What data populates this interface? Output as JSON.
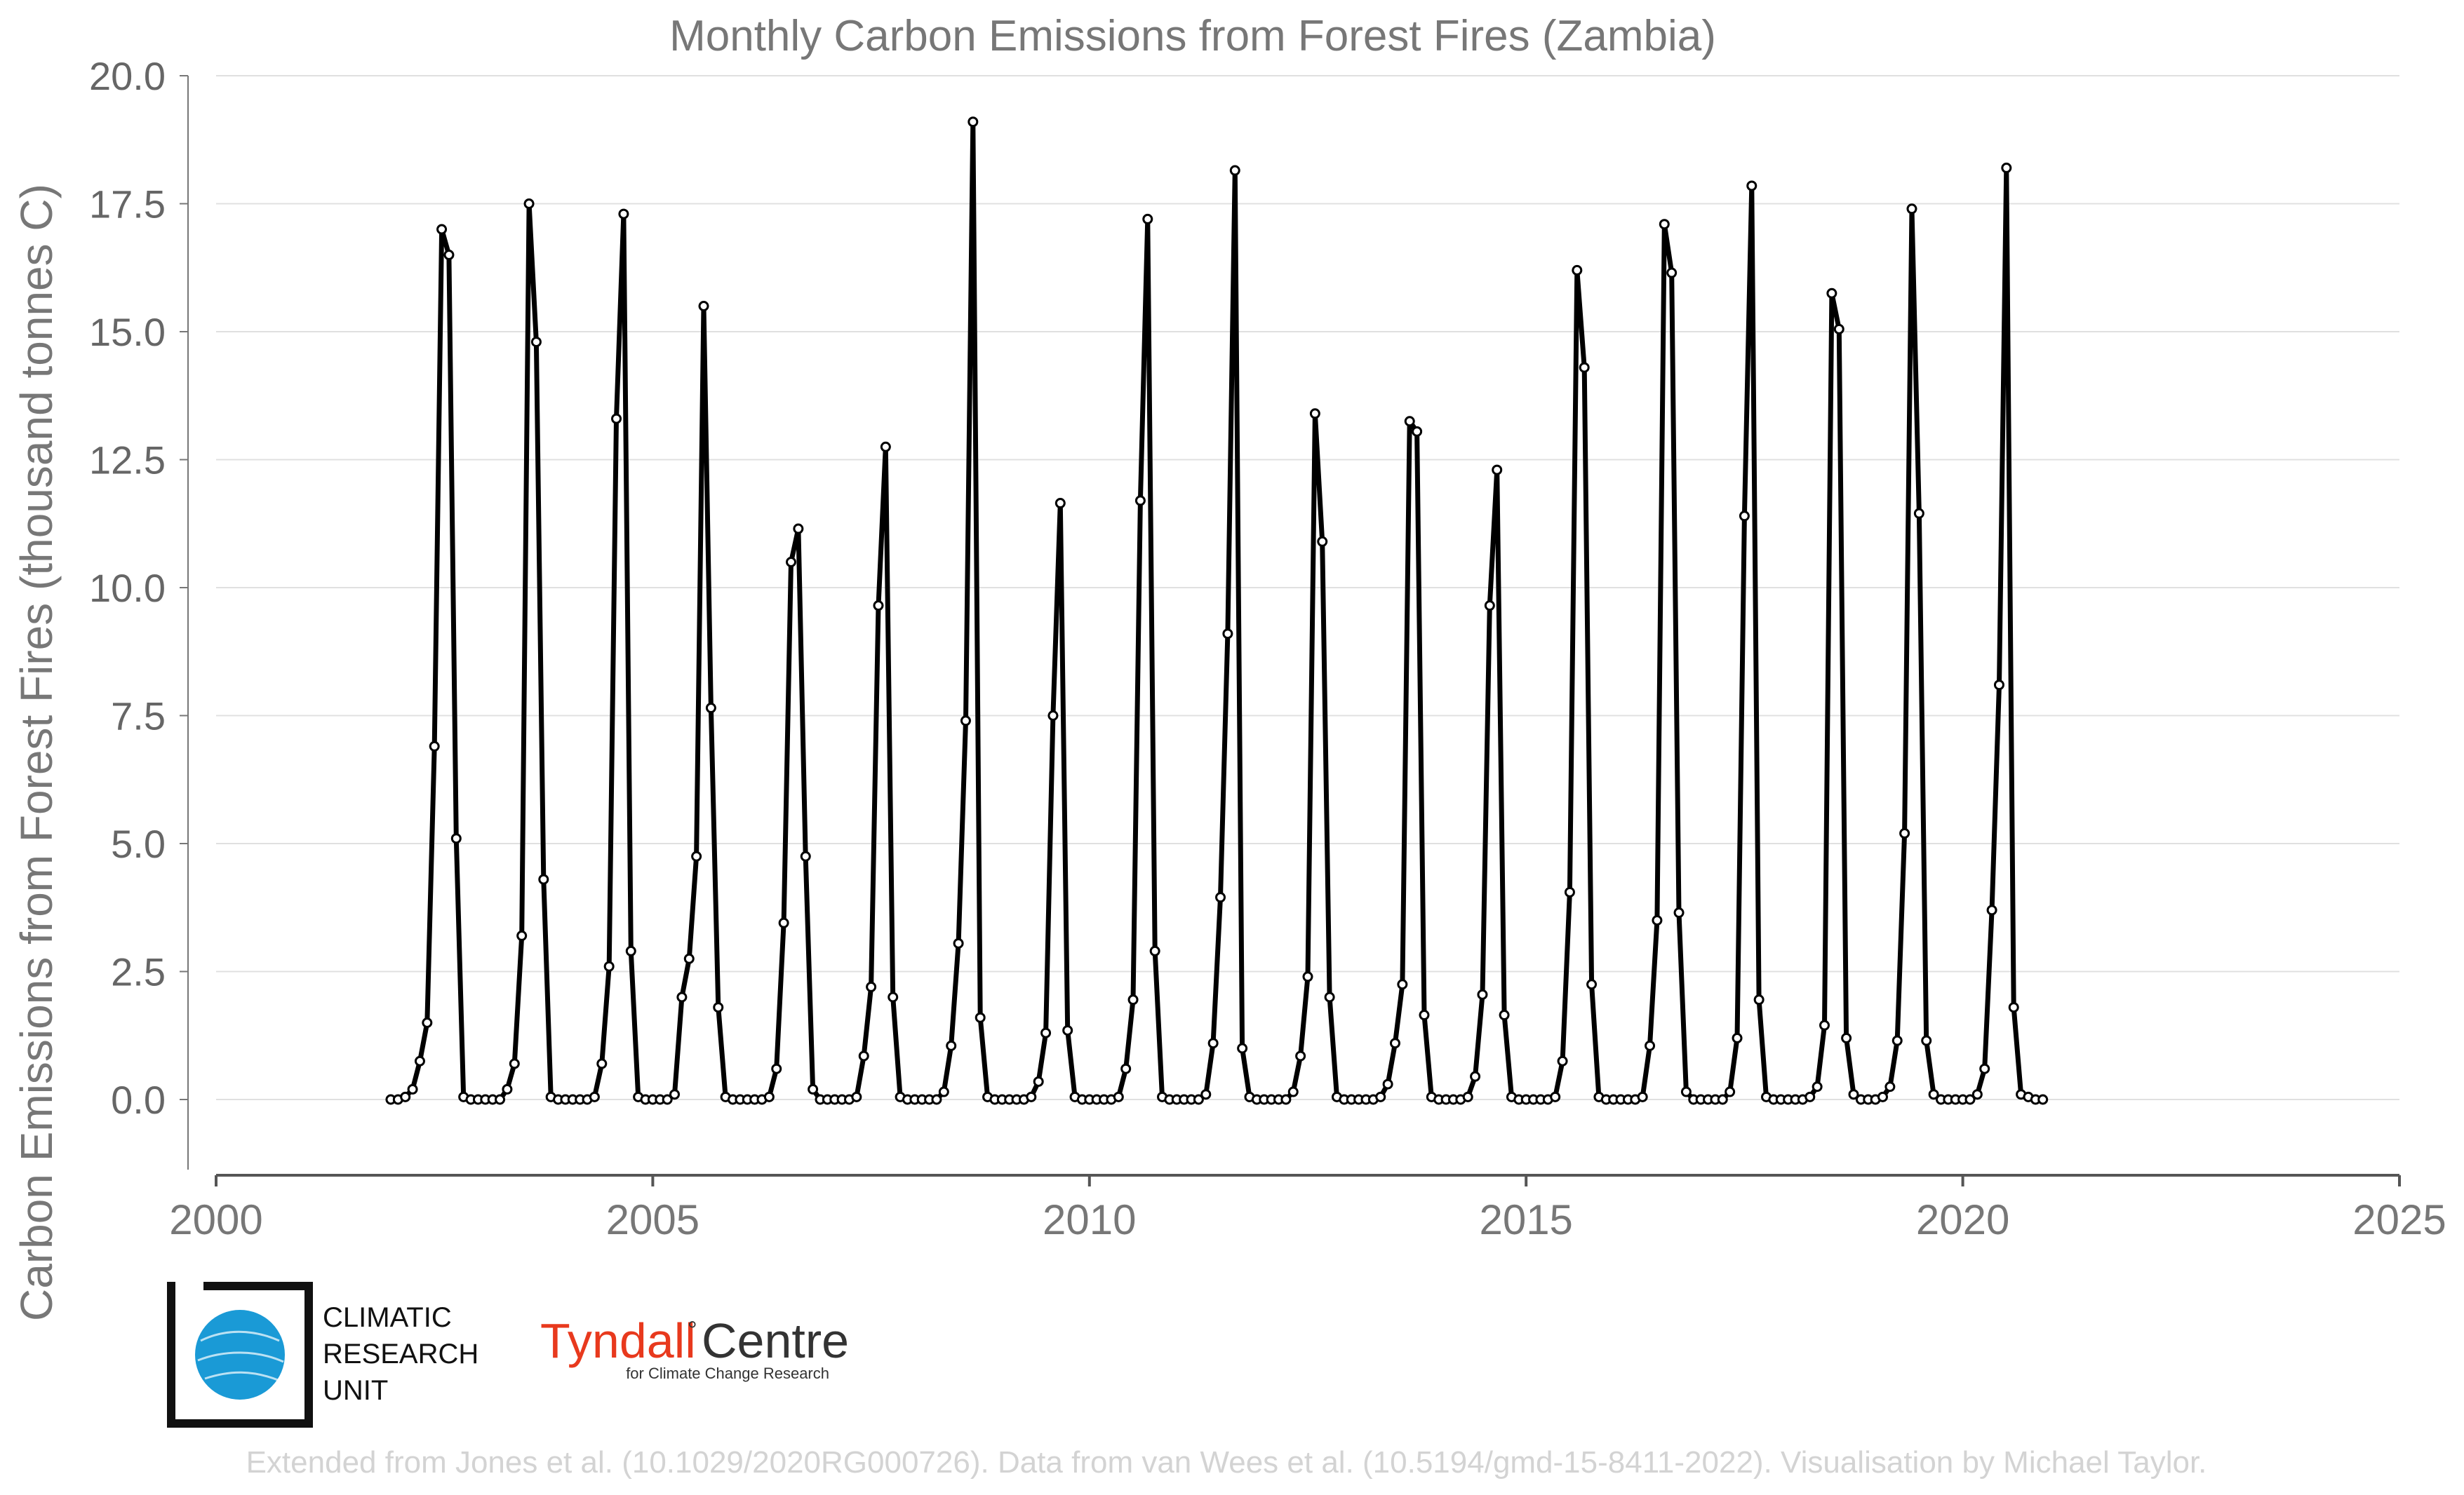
{
  "chart_data": {
    "type": "line",
    "title": "Monthly Carbon Emissions from Forest Fires (Zambia)",
    "xlabel": "",
    "ylabel": "Carbon Emissions from Forest Fires (thousand tonnes C)",
    "xlim": [
      2000,
      2025
    ],
    "ylim": [
      -1.5,
      20.0
    ],
    "x_ticks": [
      "2000",
      "2005",
      "2010",
      "2015",
      "2020",
      "2025"
    ],
    "y_ticks": [
      "0.0",
      "2.5",
      "5.0",
      "7.5",
      "10.0",
      "12.5",
      "15.0",
      "17.5",
      "20.0"
    ],
    "grid": "horizontal",
    "x_start": "2002-01",
    "x_end": "2020-12",
    "series": [
      {
        "name": "",
        "color": "#000000",
        "values": [
          0,
          0,
          0.05,
          0.2,
          0.75,
          1.5,
          6.9,
          17.0,
          16.5,
          5.1,
          0.05,
          0,
          0,
          0,
          0,
          0,
          0.2,
          0.7,
          3.2,
          17.5,
          14.8,
          4.3,
          0.05,
          0,
          0,
          0,
          0,
          0,
          0.05,
          0.7,
          2.6,
          13.3,
          17.3,
          2.9,
          0.05,
          0,
          0,
          0,
          0,
          0.1,
          2.0,
          2.75,
          4.75,
          15.5,
          7.65,
          1.8,
          0.05,
          0,
          0,
          0,
          0,
          0,
          0.05,
          0.6,
          3.45,
          10.5,
          11.15,
          4.75,
          0.2,
          0,
          0,
          0,
          0,
          0,
          0.05,
          0.85,
          2.2,
          9.65,
          12.75,
          2.0,
          0.05,
          0,
          0,
          0,
          0,
          0,
          0.15,
          1.05,
          3.05,
          7.4,
          19.1,
          1.6,
          0.05,
          0,
          0,
          0,
          0,
          0,
          0.05,
          0.35,
          1.3,
          7.5,
          11.65,
          1.35,
          0.05,
          0,
          0,
          0,
          0,
          0,
          0.05,
          0.6,
          1.95,
          11.7,
          17.2,
          2.9,
          0.05,
          0,
          0,
          0,
          0,
          0,
          0.1,
          1.1,
          3.95,
          9.1,
          18.15,
          1.0,
          0.05,
          0,
          0,
          0,
          0,
          0,
          0.15,
          0.85,
          2.4,
          13.4,
          10.9,
          2.0,
          0.05,
          0,
          0,
          0,
          0,
          0,
          0.05,
          0.3,
          1.1,
          2.25,
          13.25,
          13.05,
          1.65,
          0.05,
          0,
          0,
          0,
          0,
          0.05,
          0.45,
          2.05,
          9.65,
          12.3,
          1.65,
          0.05,
          0,
          0,
          0,
          0,
          0,
          0.05,
          0.75,
          4.05,
          16.2,
          14.3,
          2.25,
          0.05,
          0,
          0,
          0,
          0,
          0,
          0.05,
          1.05,
          3.5,
          17.1,
          16.15,
          3.65,
          0.15,
          0,
          0,
          0,
          0,
          0,
          0.15,
          1.2,
          11.4,
          17.85,
          1.95,
          0.05,
          0,
          0,
          0,
          0,
          0,
          0.05,
          0.25,
          1.45,
          15.75,
          15.05,
          1.2,
          0.1,
          0,
          0,
          0,
          0.05,
          0.25,
          1.15,
          5.2,
          17.4,
          11.45,
          1.15,
          0.1,
          0,
          0,
          0,
          0,
          0,
          0.1,
          0.6,
          3.7,
          8.1,
          18.2,
          1.8,
          0.1,
          0.05,
          0,
          0
        ]
      }
    ],
    "marker": "circle",
    "line_color": "#000000"
  },
  "logos": {
    "cru": {
      "line1": "CLIMATIC",
      "line2": "RESEARCH",
      "line3": "UNIT",
      "color": "#1a9ad6"
    },
    "tyndall": {
      "name": "Tyndall",
      "degree": "°",
      "centre": "Centre",
      "sub": "for Climate Change Research",
      "color": "#e8391d"
    }
  },
  "credit": "Extended from Jones et al. (10.1029/2020RG000726). Data from van Wees et al. (10.5194/gmd-15-8411-2022). Visualisation by Michael Taylor."
}
